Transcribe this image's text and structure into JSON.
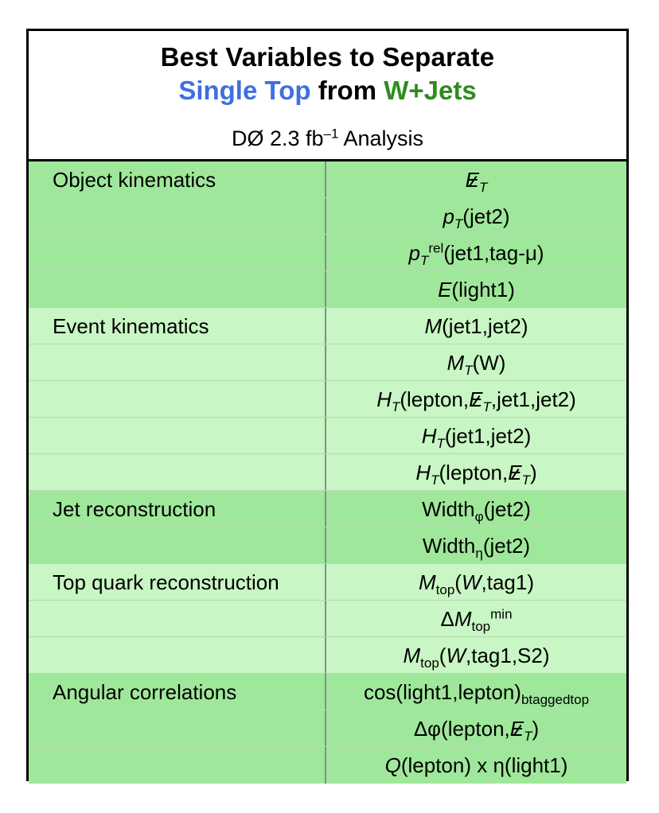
{
  "title": {
    "line1": "Best Variables to Separate",
    "line2_part1": "Single Top",
    "line2_part2": " from ",
    "line2_part3": "W+Jets",
    "subtitle_prefix": "DØ  2.3 fb",
    "subtitle_sup": "–1",
    "subtitle_suffix": " Analysis"
  },
  "colors": {
    "row_dark": "#9fe89b",
    "row_light": "#c8f6c4",
    "title_blue": "#3f6fe0",
    "title_green": "#2f8c1f"
  },
  "rows": [
    {
      "category": "Object kinematics",
      "variable": "E̸T"
    },
    {
      "category": "",
      "variable": "pT(jet2)"
    },
    {
      "category": "",
      "variable": "pTrel(jet1,tag-μ)"
    },
    {
      "category": "",
      "variable": "E(light1)"
    },
    {
      "category": "Event kinematics",
      "variable": "M(jet1,jet2)"
    },
    {
      "category": "",
      "variable": "MT(W)"
    },
    {
      "category": "",
      "variable": "HT(lepton,E̸T,jet1,jet2)"
    },
    {
      "category": "",
      "variable": "HT(jet1,jet2)"
    },
    {
      "category": "",
      "variable": "HT(lepton,E̸T)"
    },
    {
      "category": "Jet reconstruction",
      "variable": "Widthφ(jet2)"
    },
    {
      "category": "",
      "variable": "Widthη(jet2)"
    },
    {
      "category": "Top quark reconstruction",
      "variable": "Mtop(W,tag1)"
    },
    {
      "category": "",
      "variable": "ΔMtopmin"
    },
    {
      "category": "",
      "variable": "Mtop(W,tag1,S2)"
    },
    {
      "category": "Angular correlations",
      "variable": "cos(light1,lepton)btaggedtop"
    },
    {
      "category": "",
      "variable": "Δφ(lepton,E̸T)"
    },
    {
      "category": "",
      "variable": "Q(lepton) x η(light1)"
    }
  ]
}
